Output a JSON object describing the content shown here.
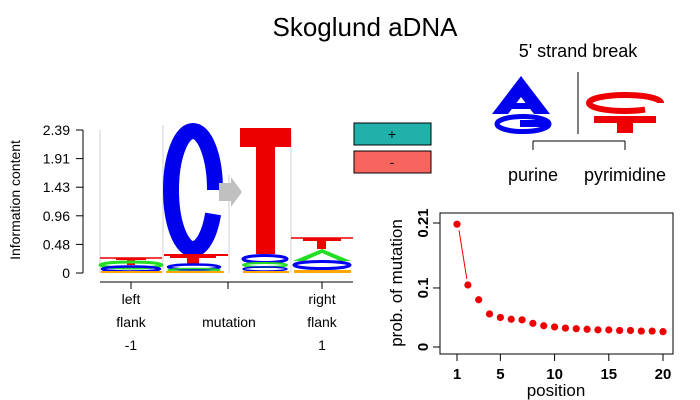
{
  "title": "Skoglund aDNA",
  "logo": {
    "ylabel": "Information content",
    "ytick_labels": [
      "0",
      "0.48",
      "0.96",
      "1.43",
      "1.91",
      "2.39"
    ],
    "xtick_labels": [
      {
        "lines": [
          "left",
          "flank",
          "-1"
        ]
      },
      {
        "lines": [
          "mutation"
        ]
      },
      {
        "lines": [
          "right",
          "flank",
          "1"
        ]
      }
    ],
    "letters": {
      "mutation_from": "C",
      "mutation_to": "T"
    }
  },
  "legend": {
    "plus": "+",
    "minus": "-"
  },
  "strand_break": {
    "title": "5' strand break",
    "left_label": "purine",
    "right_label": "pyrimidine",
    "left_letters": [
      "A",
      "G"
    ],
    "right_letters": [
      "C",
      "T"
    ]
  },
  "colors": {
    "A": "#22dd22",
    "C": "#0000ee",
    "G": "#ffa500",
    "T": "#ee0000",
    "strand_A": "#0000ee",
    "strand_G": "#0000ee",
    "strand_C": "#ee0000",
    "strand_T": "#ee0000",
    "plus": "#20b2aa",
    "minus": "#f8645e",
    "arrow": "#c0c0c0",
    "point": "#ee0000"
  },
  "chart_data": {
    "type": "scatter",
    "xlabel": "position",
    "ylabel": "prob. of mutation",
    "xlim": [
      1,
      20
    ],
    "ylim": [
      0,
      0.21
    ],
    "xticks": [
      1,
      5,
      10,
      15,
      20
    ],
    "yticks": [
      0,
      0.1,
      0.21
    ],
    "ytick_labels": [
      "0",
      "0.1",
      "0.21"
    ],
    "x": [
      1,
      2,
      3,
      4,
      5,
      6,
      7,
      8,
      9,
      10,
      11,
      12,
      13,
      14,
      15,
      16,
      17,
      18,
      19,
      20
    ],
    "y": [
      0.208,
      0.105,
      0.08,
      0.056,
      0.05,
      0.047,
      0.046,
      0.04,
      0.036,
      0.034,
      0.032,
      0.031,
      0.03,
      0.029,
      0.029,
      0.028,
      0.028,
      0.027,
      0.027,
      0.026
    ]
  }
}
